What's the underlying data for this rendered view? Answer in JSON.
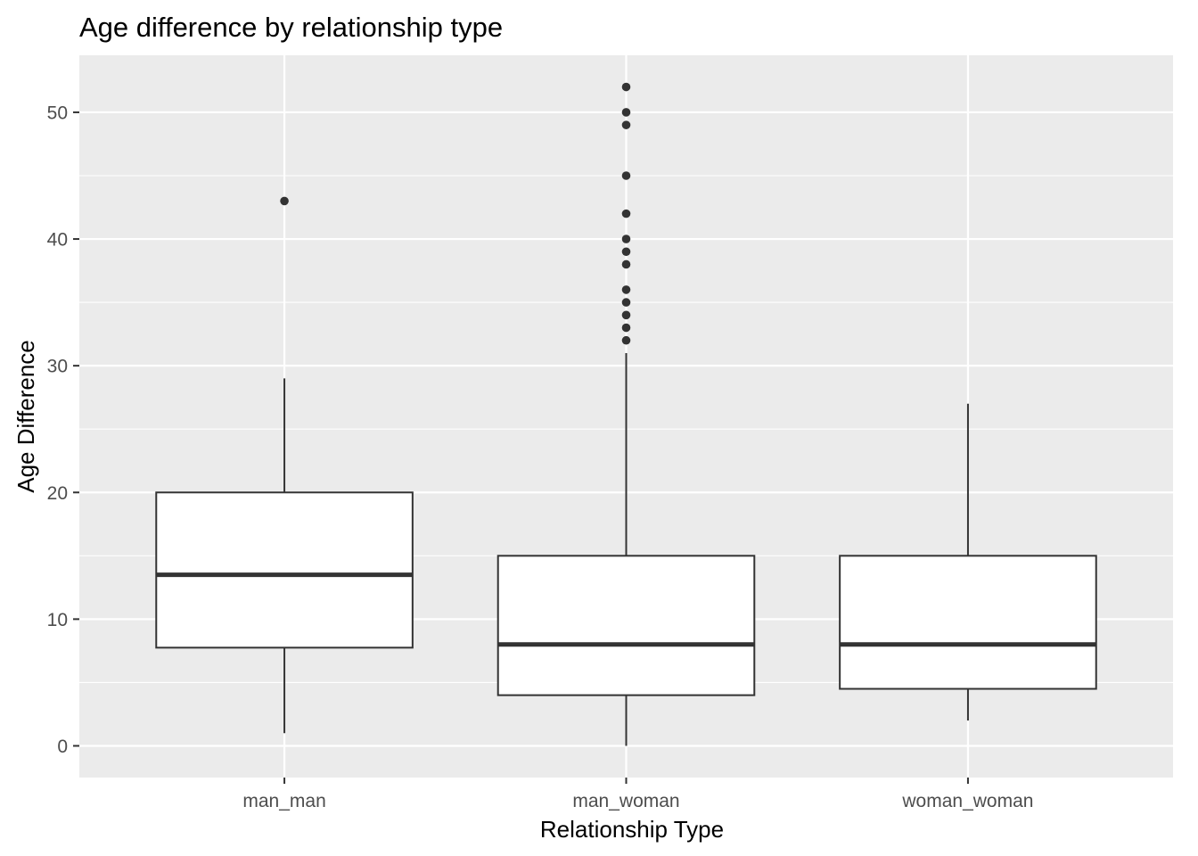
{
  "chart_data": {
    "type": "box",
    "title": "Age difference by relationship type",
    "xlabel": "Relationship Type",
    "ylabel": "Age Difference",
    "categories": [
      "man_man",
      "man_woman",
      "woman_woman"
    ],
    "ylim": [
      -2.5,
      54.5
    ],
    "yticks": [
      0,
      10,
      20,
      30,
      40,
      50
    ],
    "grid": true,
    "boxes": [
      {
        "category": "man_man",
        "whisker_low": 1,
        "q1": 7.75,
        "median": 13.5,
        "q3": 20,
        "whisker_high": 29,
        "outliers": [
          43
        ]
      },
      {
        "category": "man_woman",
        "whisker_low": 0,
        "q1": 4,
        "median": 8,
        "q3": 15,
        "whisker_high": 31,
        "outliers": [
          32,
          33,
          34,
          35,
          36,
          38,
          39,
          40,
          42,
          45,
          49,
          50,
          52
        ]
      },
      {
        "category": "woman_woman",
        "whisker_low": 2,
        "q1": 4.5,
        "median": 8,
        "q3": 15,
        "whisker_high": 27,
        "outliers": []
      }
    ],
    "colors": {
      "panel_background": "#ebebeb",
      "grid": "#ffffff",
      "box_fill": "#ffffff",
      "box_line": "#333333",
      "tick_text": "#4d4d4d"
    }
  }
}
